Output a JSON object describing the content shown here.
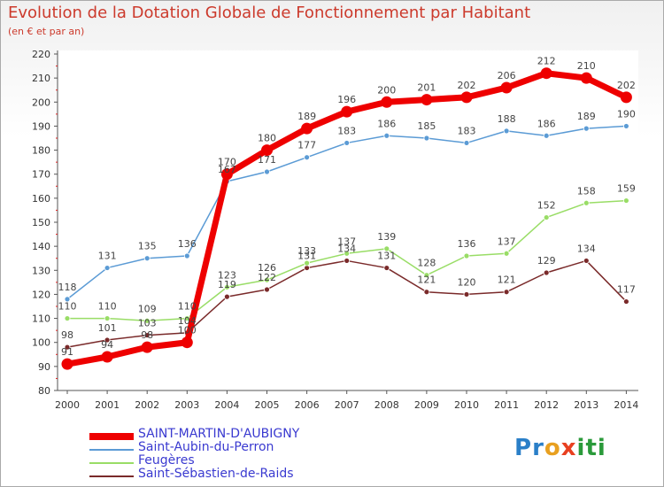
{
  "chart_data": {
    "type": "line",
    "title": "Evolution de la Dotation Globale de Fonctionnement par Habitant",
    "subtitle": "(en € et par an)",
    "xlabel": "",
    "ylabel": "",
    "ylim": [
      80,
      220
    ],
    "yticks": [
      80,
      90,
      100,
      110,
      120,
      130,
      140,
      150,
      160,
      170,
      180,
      190,
      200,
      210,
      220
    ],
    "categories": [
      "2000",
      "2001",
      "2002",
      "2003",
      "2004",
      "2005",
      "2006",
      "2007",
      "2008",
      "2009",
      "2010",
      "2011",
      "2012",
      "2013",
      "2014"
    ],
    "legend_position": "bottom-left",
    "grid": false,
    "series": [
      {
        "name": "SAINT-MARTIN-D'AUBIGNY",
        "color": "#ee0000",
        "values": [
          91,
          94,
          98,
          100,
          170,
          180,
          189,
          196,
          200,
          201,
          202,
          206,
          212,
          210,
          202
        ]
      },
      {
        "name": "Saint-Aubin-du-Perron",
        "color": "#5b9bd5",
        "values": [
          118,
          131,
          135,
          136,
          167,
          171,
          177,
          183,
          186,
          185,
          183,
          188,
          186,
          189,
          190
        ]
      },
      {
        "name": "Feugères",
        "color": "#99dd66",
        "values": [
          110,
          110,
          109,
          110,
          123,
          126,
          133,
          137,
          139,
          128,
          136,
          137,
          152,
          158,
          159
        ]
      },
      {
        "name": "Saint-Sébastien-de-Raids",
        "color": "#7a2a2a",
        "values": [
          98,
          101,
          103,
          104,
          119,
          122,
          131,
          134,
          131,
          121,
          120,
          121,
          129,
          134,
          117
        ]
      }
    ]
  },
  "logo": {
    "text": "Proxiti",
    "letters": [
      "P",
      "r",
      "o",
      "x",
      "i",
      "t",
      "i"
    ],
    "colors": [
      "#2a7fc8",
      "#2a7fc8",
      "#e8a020",
      "#e84020",
      "#2a9a3a",
      "#2a9a3a",
      "#2a9a3a"
    ]
  }
}
